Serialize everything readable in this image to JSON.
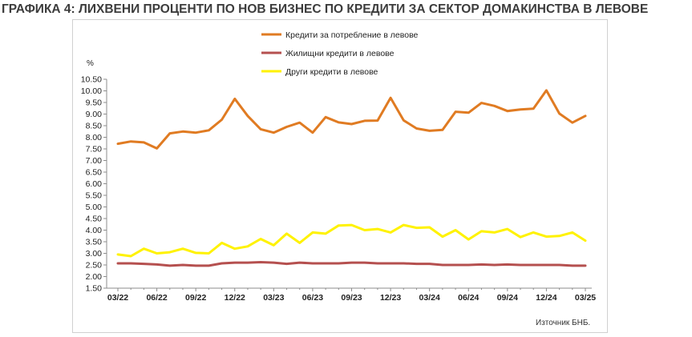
{
  "title": "ГРАФИКА 4: ЛИХВЕНИ ПРОЦЕНТИ ПО НОВ БИЗНЕС ПО КРЕДИТИ ЗА СЕКТОР ДОМАКИНСТВА В ЛЕВОВЕ",
  "source": "Източник БНБ.",
  "chart_data": {
    "type": "line",
    "ylabel": "%",
    "ylim": [
      1.5,
      10.5
    ],
    "ytick_step": 0.5,
    "grid": false,
    "legend_placement": "top",
    "xtick_labels": [
      "03/22",
      "06/22",
      "09/22",
      "12/22",
      "03/23",
      "06/23",
      "09/23",
      "12/23",
      "03/24",
      "06/24",
      "09/24",
      "12/24",
      "03/25"
    ],
    "x": [
      "03/22",
      "04/22",
      "05/22",
      "06/22",
      "07/22",
      "08/22",
      "09/22",
      "10/22",
      "11/22",
      "12/22",
      "01/23",
      "02/23",
      "03/23",
      "04/23",
      "05/23",
      "06/23",
      "07/23",
      "08/23",
      "09/23",
      "10/23",
      "11/23",
      "12/23",
      "01/24",
      "02/24",
      "03/24",
      "04/24",
      "05/24",
      "06/24",
      "07/24",
      "08/24",
      "09/24",
      "10/24",
      "11/24",
      "12/24",
      "01/25",
      "02/25",
      "03/25"
    ],
    "series": [
      {
        "name": "Кредити за потребление в левове",
        "color": "#E07B22",
        "values": [
          7.72,
          7.82,
          7.78,
          7.52,
          8.17,
          8.25,
          8.2,
          8.3,
          8.76,
          9.66,
          8.92,
          8.35,
          8.2,
          8.45,
          8.63,
          8.2,
          8.87,
          8.64,
          8.57,
          8.71,
          8.72,
          9.7,
          8.73,
          8.38,
          8.28,
          8.32,
          9.1,
          9.06,
          9.48,
          9.35,
          9.13,
          9.2,
          9.23,
          10.02,
          9.02,
          8.63,
          8.92
        ]
      },
      {
        "name": "Жилищни кредити в левове",
        "color": "#B5504F",
        "values": [
          2.57,
          2.57,
          2.55,
          2.52,
          2.47,
          2.5,
          2.47,
          2.47,
          2.57,
          2.6,
          2.6,
          2.62,
          2.6,
          2.55,
          2.6,
          2.57,
          2.57,
          2.57,
          2.6,
          2.6,
          2.57,
          2.57,
          2.57,
          2.55,
          2.55,
          2.5,
          2.5,
          2.5,
          2.52,
          2.5,
          2.52,
          2.5,
          2.5,
          2.5,
          2.5,
          2.47,
          2.47
        ]
      },
      {
        "name": "Други кредити в левове",
        "color": "#FFF200",
        "values": [
          2.95,
          2.88,
          3.2,
          3.0,
          3.05,
          3.2,
          3.02,
          3.0,
          3.45,
          3.2,
          3.3,
          3.62,
          3.35,
          3.85,
          3.45,
          3.9,
          3.85,
          4.2,
          4.22,
          4.0,
          4.05,
          3.9,
          4.22,
          4.1,
          4.12,
          3.72,
          4.0,
          3.6,
          3.95,
          3.9,
          4.05,
          3.7,
          3.9,
          3.72,
          3.75,
          3.9,
          3.55
        ]
      }
    ]
  }
}
